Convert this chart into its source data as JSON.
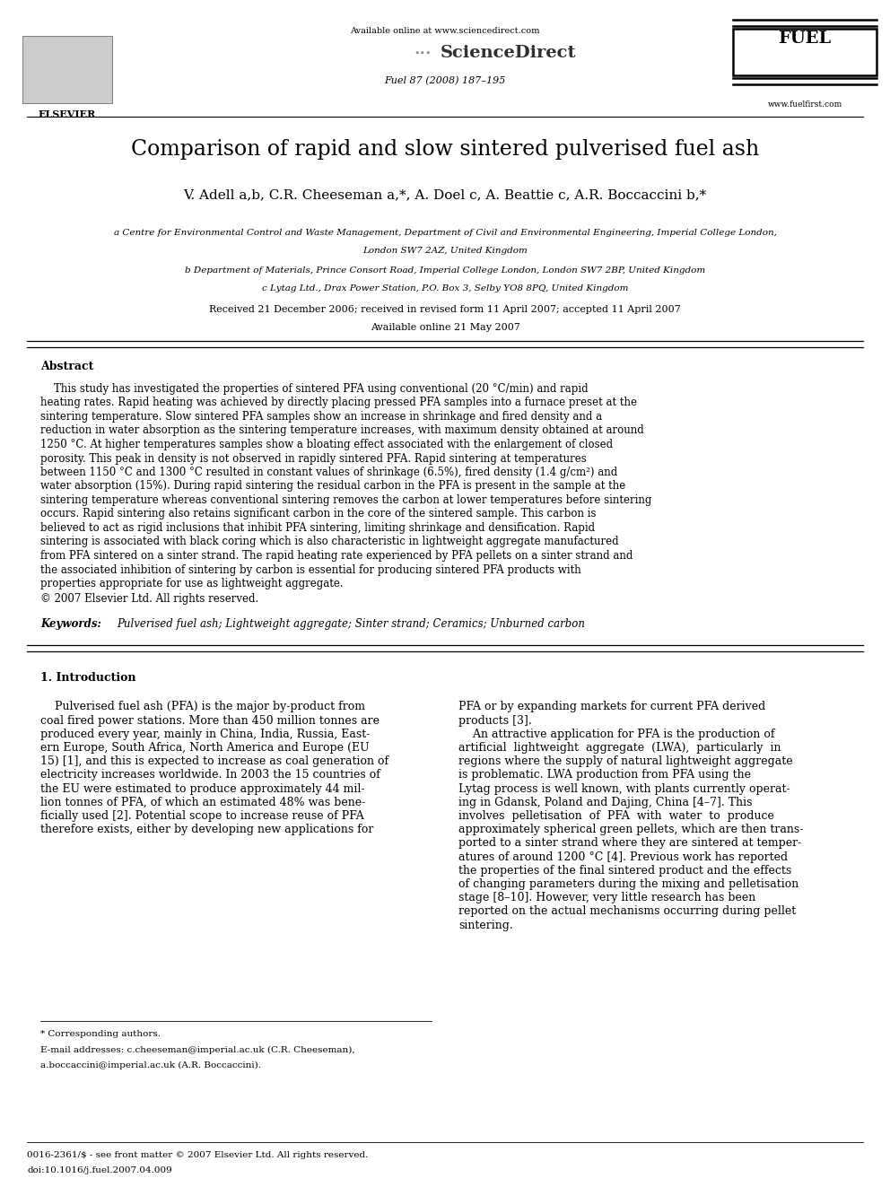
{
  "page_width": 9.92,
  "page_height": 13.23,
  "dpi": 100,
  "bg_color": "#ffffff",
  "header": {
    "available_online": "Available online at www.sciencedirect.com",
    "sciencedirect": "ScienceDirect",
    "journal_info": "Fuel 87 (2008) 187–195",
    "elsevier": "ELSEVIER",
    "website": "www.fuelfirst.com"
  },
  "title": "Comparison of rapid and slow sintered pulverised fuel ash",
  "authors_text": "V. Adell a,b, C.R. Cheeseman a,*, A. Doel c, A. Beattie c, A.R. Boccaccini b,*",
  "aff1": "a Centre for Environmental Control and Waste Management, Department of Civil and Environmental Engineering, Imperial College London,",
  "aff1b": "London SW7 2AZ, United Kingdom",
  "aff2": "b Department of Materials, Prince Consort Road, Imperial College London, London SW7 2BP, United Kingdom",
  "aff3": "c Lytag Ltd., Drax Power Station, P.O. Box 3, Selby YO8 8PQ, United Kingdom",
  "dates": "Received 21 December 2006; received in revised form 11 April 2007; accepted 11 April 2007",
  "available": "Available online 21 May 2007",
  "abstract_title": "Abstract",
  "abstract_indent": "    This study has investigated the properties of sintered PFA using conventional (20 °C/min) and rapid heating rates. Rapid heating was achieved by directly placing pressed PFA samples into a furnace preset at the sintering temperature. Slow sintered PFA samples show an increase in shrinkage and fired density and a reduction in water absorption as the sintering temperature increases, with maximum density obtained at around 1250 °C. At higher temperatures samples show a bloating effect associated with the enlargement of closed porosity. This peak in density is not observed in rapidly sintered PFA. Rapid sintering at temperatures between 1150 °C and 1300 °C resulted in constant values of shrinkage (6.5%), fired density (1.4 g/cm²) and water absorption (15%). During rapid sintering the residual carbon in the PFA is present in the sample at the sintering temperature whereas conventional sintering removes the carbon at lower temperatures before sintering occurs. Rapid sintering also retains significant carbon in the core of the sintered sample. This carbon is believed to act as rigid inclusions that inhibit PFA sintering, limiting shrinkage and densification. Rapid sintering is associated with black coring which is also characteristic in lightweight aggregate manufactured from PFA sintered on a sinter strand. The rapid heating rate experienced by PFA pellets on a sinter strand and the associated inhibition of sintering by carbon is essential for producing sintered PFA products with properties appropriate for use as lightweight aggregate.",
  "copyright": "© 2007 Elsevier Ltd. All rights reserved.",
  "keywords_label": "Keywords:",
  "keywords": "Pulverised fuel ash; Lightweight aggregate; Sinter strand; Ceramics; Unburned carbon",
  "intro_title": "1. Introduction",
  "intro_col1_lines": [
    "    Pulverised fuel ash (PFA) is the major by-product from",
    "coal fired power stations. More than 450 million tonnes are",
    "produced every year, mainly in China, India, Russia, East-",
    "ern Europe, South Africa, North America and Europe (EU",
    "15) [1], and this is expected to increase as coal generation of",
    "electricity increases worldwide. In 2003 the 15 countries of",
    "the EU were estimated to produce approximately 44 mil-",
    "lion tonnes of PFA, of which an estimated 48% was bene-",
    "ficially used [2]. Potential scope to increase reuse of PFA",
    "therefore exists, either by developing new applications for"
  ],
  "intro_col2_lines": [
    "PFA or by expanding markets for current PFA derived",
    "products [3].",
    "    An attractive application for PFA is the production of",
    "artificial  lightweight  aggregate  (LWA),  particularly  in",
    "regions where the supply of natural lightweight aggregate",
    "is problematic. LWA production from PFA using the",
    "Lytag process is well known, with plants currently operat-",
    "ing in Gdansk, Poland and Dajing, China [4–7]. This",
    "involves  pelletisation  of  PFA  with  water  to  produce",
    "approximately spherical green pellets, which are then trans-",
    "ported to a sinter strand where they are sintered at temper-",
    "atures of around 1200 °C [4]. Previous work has reported",
    "the properties of the final sintered product and the effects",
    "of changing parameters during the mixing and pelletisation",
    "stage [8–10]. However, very little research has been",
    "reported on the actual mechanisms occurring during pellet",
    "sintering."
  ],
  "footnote_star": "* Corresponding authors.",
  "footnote_email1": "E-mail addresses: c.cheeseman@imperial.ac.uk (C.R. Cheeseman),",
  "footnote_email2": "a.boccaccini@imperial.ac.uk (A.R. Boccaccini).",
  "footer_issn": "0016-2361/$ - see front matter © 2007 Elsevier Ltd. All rights reserved.",
  "footer_doi": "doi:10.1016/j.fuel.2007.04.009"
}
